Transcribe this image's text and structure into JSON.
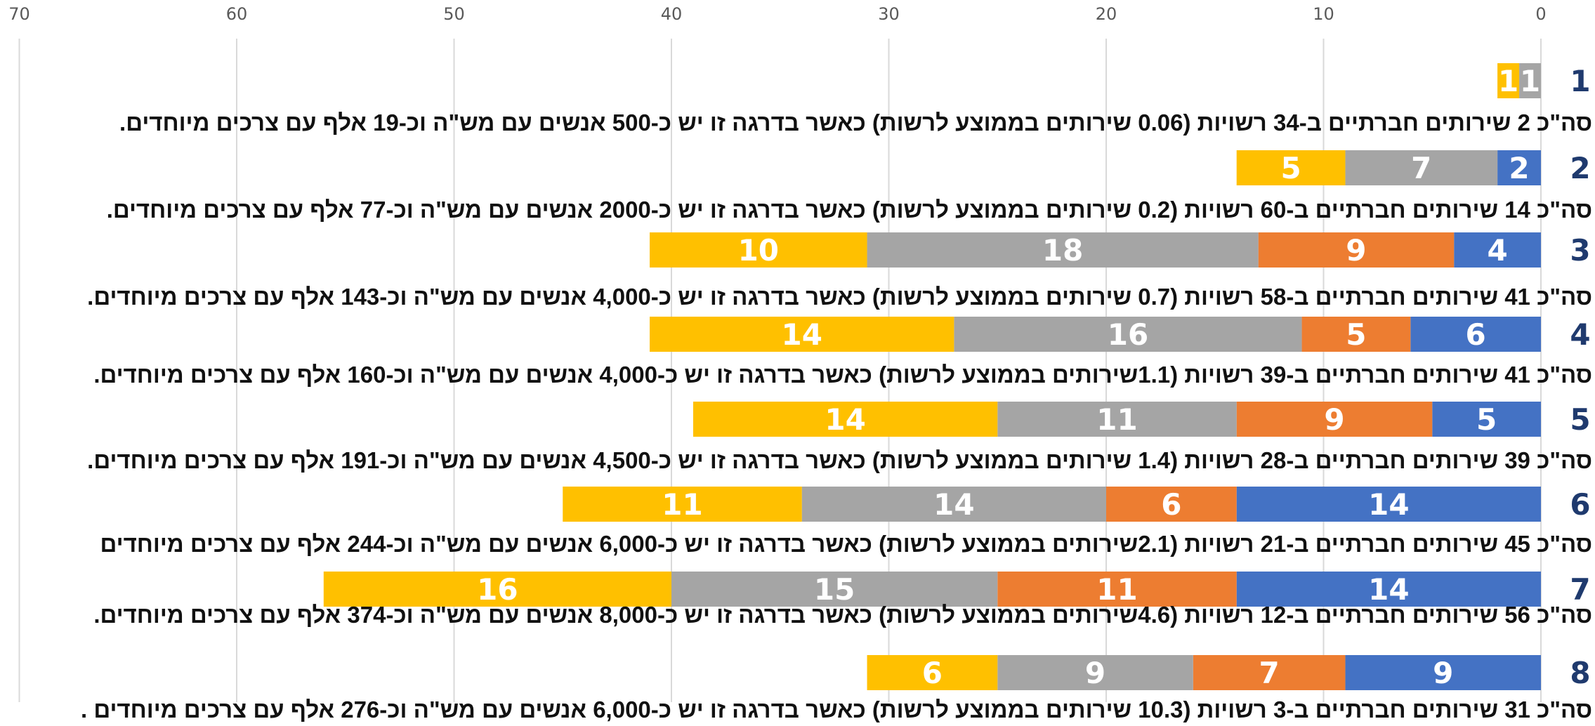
{
  "chart_data": {
    "type": "bar",
    "orientation": "horizontal-stacked",
    "x_direction": "reversed",
    "xlim": [
      0,
      70
    ],
    "x_ticks": [
      0,
      10,
      20,
      30,
      40,
      50,
      60,
      70
    ],
    "grid": true,
    "categories": [
      "1",
      "2",
      "3",
      "4",
      "5",
      "6",
      "7",
      "8"
    ],
    "series": [
      {
        "color": "#4472C4",
        "values": [
          0,
          2,
          4,
          6,
          5,
          14,
          14,
          9
        ]
      },
      {
        "color": "#ED7D31",
        "values": [
          0,
          0,
          9,
          5,
          9,
          6,
          11,
          7
        ]
      },
      {
        "color": "#A5A5A5",
        "values": [
          1,
          7,
          18,
          16,
          11,
          14,
          15,
          9
        ]
      },
      {
        "color": "#FFC000",
        "values": [
          1,
          5,
          10,
          14,
          14,
          11,
          16,
          6
        ]
      }
    ],
    "annotations": [
      "סה\"כ 2 שירותים חברתיים ב-34 רשויות (0.06 שירותים בממוצע לרשות) כאשר בדרגה זו יש כ-500 אנשים עם מש\"ה וכ-19 אלף עם צרכים מיוחדים.",
      "סה\"כ 14 שירותים חברתיים ב-60 רשויות (0.2 שירותים בממוצע לרשות) כאשר בדרגה זו יש כ-2000 אנשים עם מש\"ה וכ-77 אלף עם צרכים מיוחדים.",
      "סה\"כ 41 שירותים חברתיים ב-58 רשויות (0.7 שירותים בממוצע לרשות) כאשר בדרגה זו יש כ-4,000 אנשים עם מש\"ה וכ-143 אלף עם צרכים מיוחדים.",
      "סה\"כ 41 שירותים חברתיים ב-39 רשויות  (1.1שירותים בממוצע לרשות) כאשר בדרגה זו יש כ-4,000 אנשים עם מש\"ה וכ-160 אלף עם צרכים מיוחדים.",
      "סה\"כ 39 שירותים חברתיים ב-28 רשויות (1.4 שירותים בממוצע לרשות) כאשר בדרגה זו יש כ-4,500 אנשים עם מש\"ה וכ-191 אלף עם צרכים מיוחדים.",
      "סה\"כ 45 שירותים חברתיים ב-21 רשויות (2.1שירותים בממוצע לרשות) כאשר בדרגה זו יש כ-6,000 אנשים עם מש\"ה וכ-244 אלף עם צרכים מיוחדים",
      "סה\"כ 56 שירותים חברתיים ב-12 רשויות (4.6שירותים בממוצע לרשות) כאשר בדרגה זו יש כ-8,000 אנשים עם מש\"ה וכ-374 אלף עם צרכים מיוחדים.",
      "סה\"כ 31 שירותים חברתיים ב-3 רשויות (10.3 שירותים בממוצע לרשות) כאשר בדרגה זו יש כ-6,000 אנשים עם מש\"ה וכ-276 אלף עם צרכים מיוחדים ."
    ]
  }
}
